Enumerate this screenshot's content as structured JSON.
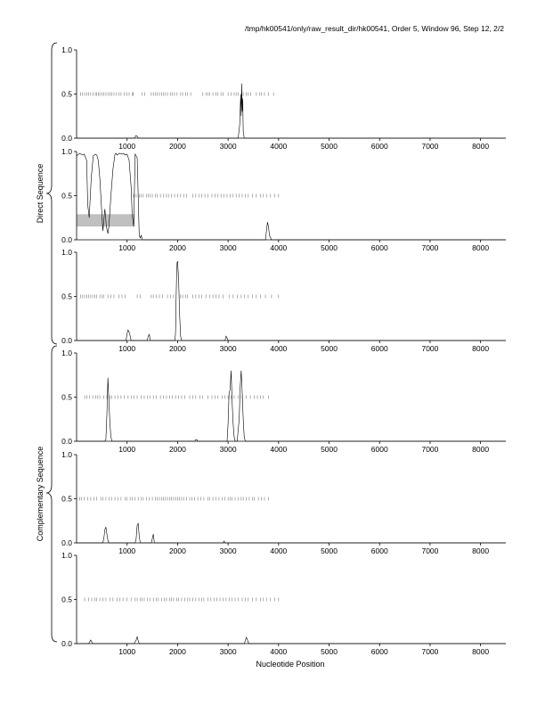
{
  "header": "/tmp/hk00541/only/raw_result_dir/hk00541, Order 5, Window 96, Step 12, 2/2",
  "xlabel": "Nucleotide Position",
  "groups": [
    "Direct Sequence",
    "Complementary Sequence"
  ],
  "chart_data": [
    {
      "type": "line",
      "group": "Direct Sequence",
      "frame": 1,
      "xlim": [
        0,
        8500
      ],
      "ylim": [
        0,
        1
      ],
      "xticks": [
        "1000",
        "2000",
        "3000",
        "4000",
        "5000",
        "6000",
        "7000",
        "8000"
      ],
      "yticks": [
        "0.0",
        "0.5",
        "1.0"
      ],
      "series": [
        {
          "x": [
            0,
            1150,
            1175,
            1200,
            1225,
            3200,
            3230,
            3250,
            3260,
            3270,
            3280,
            3290,
            3300,
            3320,
            8500
          ],
          "y": [
            0,
            0,
            0.03,
            0.02,
            0,
            0,
            0.15,
            0.5,
            0.25,
            0.62,
            0.3,
            0.45,
            0.08,
            0,
            0
          ]
        }
      ],
      "marks_y": 0.5,
      "marks": [
        80,
        120,
        160,
        200,
        240,
        280,
        330,
        370,
        400,
        430,
        460,
        500,
        540,
        580,
        620,
        660,
        700,
        740,
        790,
        840,
        880,
        940,
        1000,
        1040,
        1100,
        1120,
        1300,
        1350,
        1480,
        1520,
        1560,
        1600,
        1640,
        1680,
        1720,
        1760,
        1800,
        1860,
        1900,
        1940,
        1990,
        2060,
        2100,
        2160,
        2200,
        2260,
        2500,
        2560,
        2600,
        2640,
        2700,
        2760,
        2800,
        2860,
        2900,
        3000,
        3060,
        3120,
        3160,
        3200,
        3300,
        3360,
        3400,
        3450,
        3560,
        3620,
        3660,
        3720,
        3800,
        3900
      ]
    },
    {
      "type": "line",
      "group": "Direct Sequence",
      "frame": 2,
      "xlim": [
        0,
        8500
      ],
      "ylim": [
        0,
        1
      ],
      "xticks": [
        "1000",
        "2000",
        "3000",
        "4000",
        "5000",
        "6000",
        "7000",
        "8000"
      ],
      "yticks": [
        "0.0",
        "0.5",
        "1.0"
      ],
      "series": [
        {
          "x": [
            0,
            60,
            120,
            150,
            200,
            220,
            250,
            290,
            330,
            370,
            400,
            430,
            460,
            500,
            520,
            560,
            590,
            620,
            640,
            680,
            720,
            760,
            780,
            800,
            850,
            900,
            930,
            960,
            1000,
            1040,
            1080,
            1100,
            1130,
            1160,
            1200,
            1220,
            1240,
            1260,
            1280,
            1300,
            3740,
            3760,
            3780,
            3800,
            3820,
            3860,
            8500
          ],
          "y": [
            0.95,
            0.98,
            0.96,
            0.97,
            0.9,
            0.4,
            0.25,
            0.7,
            0.95,
            0.97,
            0.96,
            0.9,
            0.7,
            0.3,
            0.1,
            0.35,
            0.15,
            0.07,
            0.15,
            0.5,
            0.8,
            0.97,
            0.98,
            0.96,
            0.98,
            0.97,
            0.98,
            0.96,
            0.97,
            0.9,
            0.6,
            0.3,
            0.15,
            0.97,
            0.93,
            0.5,
            0.05,
            0.02,
            0.05,
            0,
            0,
            0.1,
            0.2,
            0.15,
            0.05,
            0,
            0
          ]
        }
      ],
      "marks_y": 0.5,
      "marks": [
        1130,
        1180,
        1240,
        1280,
        1320,
        1380,
        1420,
        1460,
        1500,
        1560,
        1600,
        1660,
        1720,
        1780,
        1820,
        1880,
        1940,
        2000,
        2060,
        2120,
        2180,
        2300,
        2360,
        2420,
        2480,
        2540,
        2600,
        2680,
        2740,
        2800,
        2860,
        2920,
        2980,
        3040,
        3100,
        3160,
        3220,
        3280,
        3340,
        3400,
        3480,
        3560,
        3640,
        3700,
        3760,
        3840,
        3920,
        4000
      ],
      "band": {
        "x": [
          0,
          1150
        ],
        "y": [
          0.15,
          0.29
        ]
      }
    },
    {
      "type": "line",
      "group": "Direct Sequence",
      "frame": 3,
      "xlim": [
        0,
        8500
      ],
      "ylim": [
        0,
        1
      ],
      "xticks": [
        "1000",
        "2000",
        "3000",
        "4000",
        "5000",
        "6000",
        "7000",
        "8000"
      ],
      "yticks": [
        "0.0",
        "0.5",
        "1.0"
      ],
      "series": [
        {
          "x": [
            0,
            980,
            1000,
            1020,
            1050,
            1080,
            1400,
            1420,
            1440,
            1460,
            1950,
            1960,
            1970,
            1980,
            1990,
            2000,
            2020,
            2040,
            2060,
            2080,
            2940,
            2960,
            2980,
            3000,
            8500
          ],
          "y": [
            0,
            0,
            0.08,
            0.12,
            0.08,
            0,
            0,
            0.05,
            0.07,
            0,
            0,
            0.1,
            0.45,
            0.72,
            0.88,
            0.9,
            0.7,
            0.3,
            0.05,
            0,
            0,
            0.05,
            0.03,
            0,
            0
          ]
        }
      ],
      "marks_y": 0.5,
      "marks": [
        80,
        120,
        160,
        200,
        240,
        280,
        320,
        360,
        400,
        460,
        500,
        540,
        620,
        680,
        740,
        840,
        900,
        960,
        1200,
        1260,
        1480,
        1520,
        1580,
        1640,
        1700,
        1800,
        1860,
        1920,
        2060,
        2100,
        2160,
        2200,
        2300,
        2360,
        2420,
        2480,
        2560,
        2640,
        2700,
        2760,
        2820,
        2900,
        3020,
        3100,
        3180,
        3260,
        3320,
        3400,
        3480,
        3560,
        3640,
        3740,
        3860,
        4000
      ]
    },
    {
      "type": "line",
      "group": "Complementary Sequence",
      "frame": 1,
      "xlim": [
        0,
        8500
      ],
      "ylim": [
        0,
        1
      ],
      "xticks": [
        "1000",
        "2000",
        "3000",
        "4000",
        "5000",
        "6000",
        "7000",
        "8000"
      ],
      "yticks": [
        "0.0",
        "0.5",
        "1.0"
      ],
      "series": [
        {
          "x": [
            0,
            560,
            580,
            600,
            620,
            640,
            660,
            680,
            700,
            2340,
            2360,
            2380,
            2400,
            2980,
            3000,
            3020,
            3040,
            3060,
            3080,
            3100,
            3120,
            3140,
            3180,
            3220,
            3240,
            3260,
            3280,
            3300,
            3320,
            3340,
            8500
          ],
          "y": [
            0,
            0,
            0.02,
            0.3,
            0.72,
            0.45,
            0.2,
            0.05,
            0,
            0,
            0.02,
            0.02,
            0,
            0,
            0.2,
            0.55,
            0.58,
            0.8,
            0.45,
            0.2,
            0.05,
            0,
            0,
            0.25,
            0.62,
            0.8,
            0.55,
            0.25,
            0.05,
            0,
            0
          ]
        }
      ],
      "marks_y": 0.5,
      "marks": [
        160,
        200,
        260,
        320,
        380,
        420,
        460,
        540,
        600,
        660,
        700,
        760,
        820,
        880,
        940,
        1020,
        1080,
        1140,
        1200,
        1280,
        1340,
        1400,
        1460,
        1520,
        1580,
        1660,
        1720,
        1780,
        1840,
        1900,
        1960,
        2020,
        2080,
        2140,
        2240,
        2300,
        2360,
        2440,
        2500,
        2600,
        2680,
        2740,
        2800,
        2880,
        2940,
        3000,
        3060,
        3120,
        3200,
        3280,
        3360,
        3440,
        3520,
        3580,
        3640,
        3700,
        3800
      ]
    },
    {
      "type": "line",
      "group": "Complementary Sequence",
      "frame": 2,
      "xlim": [
        0,
        8500
      ],
      "ylim": [
        0,
        1
      ],
      "xticks": [
        "1000",
        "2000",
        "3000",
        "4000",
        "5000",
        "6000",
        "7000",
        "8000"
      ],
      "yticks": [
        "0.0",
        "0.5",
        "1.0"
      ],
      "series": [
        {
          "x": [
            0,
            520,
            540,
            560,
            580,
            600,
            620,
            640,
            1160,
            1180,
            1200,
            1220,
            1240,
            1260,
            1480,
            1500,
            1520,
            1540,
            2900,
            2920,
            2940,
            8500
          ],
          "y": [
            0,
            0,
            0.05,
            0.15,
            0.18,
            0.1,
            0.03,
            0,
            0,
            0.05,
            0.2,
            0.22,
            0.08,
            0,
            0,
            0.05,
            0.1,
            0,
            0,
            0.02,
            0,
            0
          ]
        }
      ],
      "marks_y": 0.5,
      "marks": [
        60,
        100,
        150,
        220,
        280,
        340,
        400,
        480,
        520,
        580,
        640,
        700,
        760,
        820,
        880,
        960,
        1000,
        1060,
        1100,
        1160,
        1220,
        1280,
        1320,
        1380,
        1440,
        1500,
        1560,
        1600,
        1640,
        1680,
        1720,
        1760,
        1800,
        1840,
        1880,
        1920,
        1960,
        2000,
        2040,
        2080,
        2120,
        2180,
        2240,
        2280,
        2340,
        2400,
        2460,
        2520,
        2600,
        2640,
        2700,
        2760,
        2820,
        2880,
        2940,
        3000,
        3040,
        3080,
        3140,
        3200,
        3260,
        3300,
        3360,
        3420,
        3480,
        3520,
        3600,
        3660,
        3720,
        3800
      ]
    },
    {
      "type": "line",
      "group": "Complementary Sequence",
      "frame": 3,
      "xlim": [
        0,
        8500
      ],
      "ylim": [
        0,
        1
      ],
      "xticks": [
        "1000",
        "2000",
        "3000",
        "4000",
        "5000",
        "6000",
        "7000",
        "8000"
      ],
      "yticks": [
        "0.0",
        "0.5",
        "1.0"
      ],
      "series": [
        {
          "x": [
            0,
            240,
            260,
            280,
            300,
            320,
            1140,
            1160,
            1180,
            1200,
            1220,
            1240,
            1260,
            1280,
            3320,
            3340,
            3360,
            3380,
            3400,
            3420,
            8500
          ],
          "y": [
            0,
            0,
            0.02,
            0.04,
            0.02,
            0,
            0,
            0.02,
            0.04,
            0.08,
            0.03,
            0,
            0,
            0,
            0,
            0.03,
            0.07,
            0.05,
            0.01,
            0,
            0
          ]
        }
      ],
      "marks_y": 0.5,
      "marks": [
        160,
        240,
        300,
        360,
        400,
        460,
        520,
        580,
        660,
        720,
        800,
        860,
        920,
        1000,
        1080,
        1160,
        1200,
        1260,
        1300,
        1340,
        1400,
        1460,
        1520,
        1580,
        1620,
        1680,
        1740,
        1780,
        1840,
        1880,
        1920,
        1980,
        2020,
        2080,
        2140,
        2200,
        2240,
        2300,
        2360,
        2420,
        2480,
        2520,
        2600,
        2660,
        2720,
        2780,
        2840,
        2900,
        2960,
        3020,
        3080,
        3140,
        3200,
        3280,
        3340,
        3400,
        3480,
        3560,
        3640,
        3700,
        3760,
        3840,
        3920,
        4000
      ]
    }
  ]
}
